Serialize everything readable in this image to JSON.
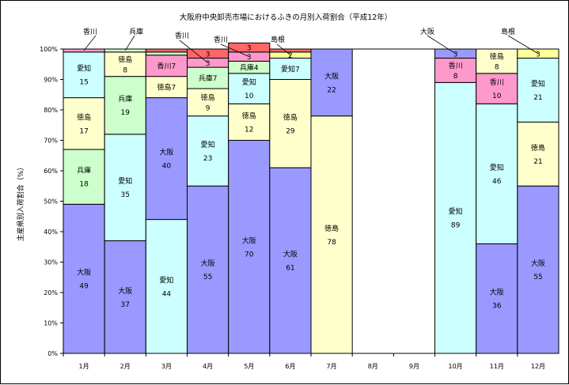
{
  "chart_data": {
    "type": "bar",
    "stacked": true,
    "title": "大阪府中央卸売市場におけるふきの月別入荷割合（平成12年）",
    "ylabel": "主産県別入荷割合（%）",
    "ylim": [
      0,
      100
    ],
    "yticks": [
      "0%",
      "10%",
      "20%",
      "30%",
      "40%",
      "50%",
      "60%",
      "70%",
      "80%",
      "90%",
      "100%"
    ],
    "categories": [
      "1月",
      "2月",
      "3月",
      "4月",
      "5月",
      "6月",
      "7月",
      "8月",
      "9月",
      "10月",
      "11月",
      "12月"
    ],
    "colors": {
      "大阪": "#9999ff",
      "愛知": "#ccffff",
      "兵庫": "#ccffcc",
      "徳島": "#ffffcc",
      "香川": "#ff99cc",
      "島根": "#ffff99",
      "その他": "#ff6666"
    },
    "bars": [
      {
        "month": "1月",
        "segments": [
          {
            "name": "大阪",
            "value": 49,
            "label": "大阪",
            "shown": "49"
          },
          {
            "name": "兵庫",
            "value": 18,
            "label": "兵庫",
            "shown": "18"
          },
          {
            "name": "徳島",
            "value": 17,
            "label": "徳島",
            "shown": "17"
          },
          {
            "name": "愛知",
            "value": 15,
            "label": "愛知",
            "shown": "15"
          },
          {
            "name": "香川",
            "value": 1,
            "label": "",
            "shown": ""
          }
        ]
      },
      {
        "month": "2月",
        "segments": [
          {
            "name": "大阪",
            "value": 37,
            "label": "大阪",
            "shown": "37"
          },
          {
            "name": "愛知",
            "value": 35,
            "label": "愛知",
            "shown": "35"
          },
          {
            "name": "兵庫",
            "value": 19,
            "label": "兵庫",
            "shown": "19"
          },
          {
            "name": "徳島",
            "value": 8,
            "label": "徳島",
            "shown": "8"
          },
          {
            "name": "兵庫",
            "value": 1,
            "label": "",
            "shown": ""
          }
        ]
      },
      {
        "month": "3月",
        "segments": [
          {
            "name": "愛知",
            "value": 44,
            "label": "愛知",
            "shown": "44"
          },
          {
            "name": "大阪",
            "value": 40,
            "label": "大阪",
            "shown": "40"
          },
          {
            "name": "徳島",
            "value": 7,
            "label": "徳島7",
            "shown": ""
          },
          {
            "name": "香川",
            "value": 7,
            "label": "香川7",
            "shown": ""
          },
          {
            "name": "兵庫",
            "value": 1,
            "label": "",
            "shown": ""
          },
          {
            "name": "その他",
            "value": 1,
            "label": "",
            "shown": ""
          }
        ]
      },
      {
        "month": "4月",
        "segments": [
          {
            "name": "大阪",
            "value": 55,
            "label": "大阪",
            "shown": "55"
          },
          {
            "name": "愛知",
            "value": 23,
            "label": "愛知",
            "shown": "23"
          },
          {
            "name": "徳島",
            "value": 9,
            "label": "徳島",
            "shown": "9"
          },
          {
            "name": "兵庫",
            "value": 7,
            "label": "兵庫7",
            "shown": ""
          },
          {
            "name": "香川",
            "value": 3,
            "label": "",
            "shown": "3"
          },
          {
            "name": "その他",
            "value": 3,
            "label": "",
            "shown": "3"
          }
        ]
      },
      {
        "month": "5月",
        "segments": [
          {
            "name": "大阪",
            "value": 70,
            "label": "大阪",
            "shown": "70"
          },
          {
            "name": "徳島",
            "value": 12,
            "label": "徳島",
            "shown": "12"
          },
          {
            "name": "愛知",
            "value": 10,
            "label": "愛知",
            "shown": "10"
          },
          {
            "name": "兵庫",
            "value": 4,
            "label": "兵庫4",
            "shown": ""
          },
          {
            "name": "香川",
            "value": 3,
            "label": "",
            "shown": "3"
          },
          {
            "name": "その他",
            "value": 3,
            "label": "",
            "shown": "3"
          }
        ]
      },
      {
        "month": "6月",
        "segments": [
          {
            "name": "大阪",
            "value": 61,
            "label": "大阪",
            "shown": "61"
          },
          {
            "name": "徳島",
            "value": 29,
            "label": "徳島",
            "shown": "29"
          },
          {
            "name": "愛知",
            "value": 7,
            "label": "愛知7",
            "shown": ""
          },
          {
            "name": "島根",
            "value": 2,
            "label": "",
            "shown": "2"
          },
          {
            "name": "その他",
            "value": 1,
            "label": "",
            "shown": ""
          }
        ]
      },
      {
        "month": "7月",
        "segments": [
          {
            "name": "徳島",
            "value": 78,
            "label": "徳島",
            "shown": "78"
          },
          {
            "name": "大阪",
            "value": 22,
            "label": "大阪",
            "shown": "22"
          }
        ]
      },
      {
        "month": "8月",
        "segments": []
      },
      {
        "month": "9月",
        "segments": []
      },
      {
        "month": "10月",
        "segments": [
          {
            "name": "愛知",
            "value": 89,
            "label": "愛知",
            "shown": "89"
          },
          {
            "name": "香川",
            "value": 8,
            "label": "香川",
            "shown": "8"
          },
          {
            "name": "大阪",
            "value": 3,
            "label": "",
            "shown": "3"
          }
        ]
      },
      {
        "month": "11月",
        "segments": [
          {
            "name": "大阪",
            "value": 36,
            "label": "大阪",
            "shown": "36"
          },
          {
            "name": "愛知",
            "value": 46,
            "label": "愛知",
            "shown": "46"
          },
          {
            "name": "香川",
            "value": 10,
            "label": "香川",
            "shown": "10"
          },
          {
            "name": "徳島",
            "value": 8,
            "label": "徳島",
            "shown": "8"
          }
        ]
      },
      {
        "month": "12月",
        "segments": [
          {
            "name": "大阪",
            "value": 55,
            "label": "大阪",
            "shown": "55"
          },
          {
            "name": "徳島",
            "value": 21,
            "label": "徳島",
            "shown": "21"
          },
          {
            "name": "愛知",
            "value": 21,
            "label": "愛知",
            "shown": "21"
          },
          {
            "name": "島根",
            "value": 3,
            "label": "",
            "shown": "3"
          }
        ]
      }
    ],
    "callouts": [
      {
        "text": "香川",
        "month": "1月",
        "value": 99.5
      },
      {
        "text": "兵庫",
        "month": "2月",
        "value": 99.5
      },
      {
        "text": "香川",
        "month": "4月",
        "value": 95.5
      },
      {
        "text": "香川",
        "month": "5月",
        "value": 97.5
      },
      {
        "text": "島根",
        "month": "6月",
        "value": 98
      },
      {
        "text": "大阪",
        "month": "10月",
        "value": 98.5
      },
      {
        "text": "島根",
        "month": "12月",
        "value": 98.5
      }
    ]
  }
}
